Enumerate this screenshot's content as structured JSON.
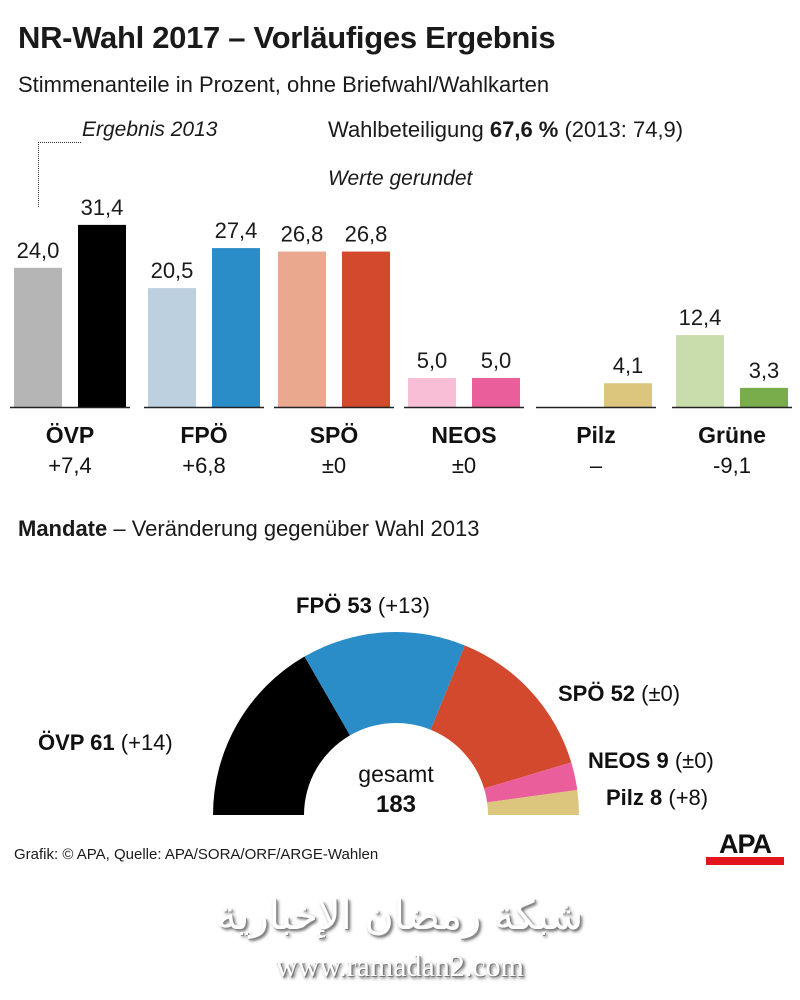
{
  "header": {
    "title": "NR-Wahl 2017 – Vorläufiges Ergebnis",
    "subtitle": "Stimmenanteile in Prozent, ohne Briefwahl/Wahlkarten",
    "legend_2013": "Ergebnis 2013",
    "turnout_label": "Wahlbeteiligung",
    "turnout_value": "67,6 %",
    "turnout_prev": "(2013: 74,9)",
    "note": "Werte gerundet"
  },
  "chart_data": [
    {
      "type": "bar",
      "categories": [
        "ÖVP",
        "FPÖ",
        "SPÖ",
        "NEOS",
        "Pilz",
        "Grüne"
      ],
      "series": [
        {
          "name": "Ergebnis 2013",
          "values": [
            24.0,
            20.5,
            26.8,
            5.0,
            null,
            12.4
          ],
          "labels": [
            "24,0",
            "20,5",
            "26,8",
            "5,0",
            "",
            "12,4"
          ],
          "colors": [
            "#b5b5b5",
            "#bdd0e0",
            "#eaa98f",
            "#f7bed6",
            "#ffffff",
            "#c9dcab"
          ]
        },
        {
          "values": [
            31.4,
            27.4,
            26.8,
            5.0,
            4.1,
            3.3
          ],
          "labels": [
            "31,4",
            "27,4",
            "26,8",
            "5,0",
            "4,1",
            "3,3"
          ],
          "colors": [
            "#000000",
            "#2b8dc8",
            "#d2492d",
            "#ea5f9b",
            "#dcc57c",
            "#79ad4b"
          ]
        }
      ],
      "changes": [
        "+7,4",
        "+6,8",
        "±0",
        "±0",
        "–",
        "-9,1"
      ],
      "ylim": [
        0,
        35
      ]
    },
    {
      "type": "pie",
      "title_bold": "Mandate",
      "title_rest": " – Veränderung gegenüber Wahl 2013",
      "shape": "semicircle",
      "categories": [
        "ÖVP",
        "FPÖ",
        "SPÖ",
        "NEOS",
        "Pilz"
      ],
      "values": [
        61,
        53,
        52,
        9,
        8
      ],
      "labels": [
        "ÖVP 61",
        "FPÖ 53",
        "SPÖ 52",
        "NEOS 9",
        "Pilz 8"
      ],
      "changes": [
        "(+14)",
        "(+13)",
        "(±0)",
        "(±0)",
        "(+8)"
      ],
      "colors": [
        "#000000",
        "#2b8dc8",
        "#d2492d",
        "#ea5f9b",
        "#dcc57c"
      ],
      "center_label": "gesamt",
      "center_value": "183"
    }
  ],
  "footer": {
    "source": "Grafik: © APA, Quelle: APA/SORA/ORF/ARGE-Wahlen",
    "logo": "APA",
    "watermark_arabic": "شبكة رمضان الإخبارية",
    "watermark_url": "www.ramadan2.com"
  }
}
